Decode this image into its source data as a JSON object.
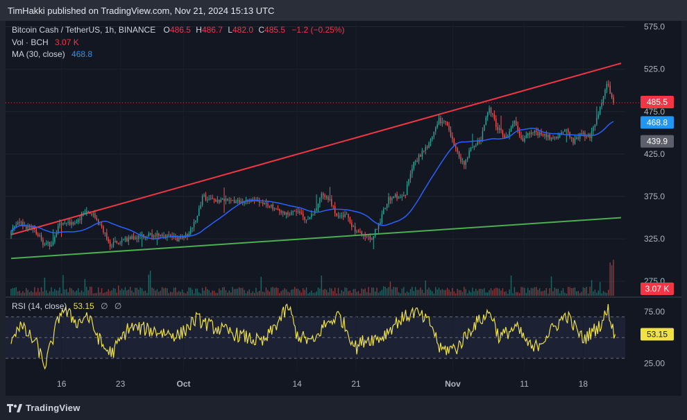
{
  "header": {
    "publisher_text": "TimHakki published on TradingView.com, Nov 21, 2024 15:13 UTC"
  },
  "legend": {
    "title": "Bitcoin Cash / TetherUS, 1h, BINANCE",
    "o_label": "O",
    "o_value": "486.5",
    "h_label": "H",
    "h_value": "486.7",
    "l_label": "L",
    "l_value": "482.0",
    "c_label": "C",
    "c_value": "485.5",
    "change": "−1.2 (−0.25%)",
    "vol_label": "Vol · BCH",
    "vol_value": "3.07 K",
    "ma_label": "MA (30, close)",
    "ma_value": "468.8"
  },
  "rsi_legend": {
    "label": "RSI (14, close)",
    "value": "53.15",
    "icons": [
      "∅",
      "∅"
    ]
  },
  "footer": {
    "logo_text": "TradingView"
  },
  "colors": {
    "up": "#26a69a",
    "down": "#ef5350",
    "ma": "#2962ff",
    "resistance": "#f23645",
    "support": "#4caf50",
    "rsi": "#f0e246",
    "current_tag": "#f23645",
    "ma_tag": "#2196f3",
    "gray_tag": "#5d606b",
    "vol_tag": "#f23645"
  },
  "chart_data": [
    {
      "type": "candlestick",
      "title": "Bitcoin Cash / TetherUS, 1h, BINANCE",
      "y_axis": {
        "ticks": [
          "575.0",
          "525.0",
          "475.0",
          "425.0",
          "375.0",
          "325.0",
          "275.0"
        ],
        "range": [
          258,
          582
        ]
      },
      "x_axis": {
        "ticks": [
          "16",
          "23",
          "Oct",
          "14",
          "21",
          "Nov",
          "11",
          "18"
        ],
        "range_days": [
          0,
          73
        ]
      },
      "price_path": {
        "day": [
          0,
          1,
          3,
          4,
          5,
          6,
          7,
          8,
          9,
          10,
          11,
          12,
          14,
          17,
          20,
          21,
          22,
          23,
          24,
          28,
          30,
          33,
          34,
          35,
          36,
          37,
          38,
          39,
          40,
          41,
          42,
          43,
          44,
          45,
          46,
          47,
          48,
          50,
          51,
          52,
          53,
          54,
          55,
          56,
          57,
          58,
          59,
          60,
          61,
          62,
          63,
          65,
          66,
          67,
          68,
          69,
          70,
          71,
          71.5,
          71.8
        ],
        "price": [
          330,
          345,
          335,
          320,
          318,
          345,
          343,
          345,
          358,
          353,
          337,
          318,
          325,
          330,
          325,
          328,
          345,
          375,
          370,
          370,
          368,
          355,
          358,
          350,
          352,
          376,
          373,
          350,
          353,
          335,
          330,
          325,
          345,
          372,
          375,
          377,
          412,
          440,
          465,
          460,
          430,
          412,
          435,
          440,
          482,
          455,
          445,
          462,
          440,
          452,
          448,
          442,
          455,
          440,
          448,
          445,
          470,
          510,
          495,
          485.5
        ]
      },
      "last_price": 485.5,
      "labels": {
        "current_price": "485.5",
        "ma_value": "468.8",
        "gray_level": "439.9"
      },
      "trendlines": [
        {
          "name": "",
          "color": "#f23645",
          "from": {
            "day": 0,
            "price": 330
          },
          "to": {
            "day": 72.5,
            "price": 532
          }
        },
        {
          "name": "",
          "color": "#4caf50",
          "from": {
            "day": 0,
            "price": 302
          },
          "to": {
            "day": 72.5,
            "price": 350
          }
        }
      ],
      "series": [
        {
          "name": "Bitcoin Cash / TetherUS",
          "kind": "candles"
        },
        {
          "name": "MA (30, close)",
          "kind": "line",
          "last_value": 468.8
        },
        {
          "name": "Vol · BCH",
          "kind": "volume",
          "last_value": "3.07 K"
        }
      ]
    },
    {
      "type": "line",
      "title": "RSI (14, close)",
      "y_axis": {
        "ticks": [
          "75.00",
          "25.00"
        ],
        "range": [
          18,
          87
        ]
      },
      "bands": {
        "upper": 70,
        "lower": 30,
        "middle": 50
      },
      "last_value": 53.15,
      "key_points": {
        "day": [
          0,
          1,
          3,
          4,
          6,
          8,
          9,
          11,
          12,
          14,
          16,
          20,
          22,
          24,
          28,
          30,
          33,
          34,
          36,
          37,
          39,
          41,
          42,
          44,
          46,
          48,
          50,
          51,
          53,
          55,
          57,
          58,
          60,
          62,
          66,
          68,
          70,
          71,
          71.6,
          71.8
        ],
        "value": [
          50,
          62,
          44,
          22,
          78,
          64,
          72,
          40,
          35,
          60,
          58,
          52,
          68,
          60,
          50,
          45,
          80,
          52,
          45,
          60,
          72,
          40,
          48,
          50,
          66,
          75,
          62,
          38,
          40,
          62,
          75,
          50,
          60,
          38,
          72,
          48,
          62,
          77,
          55,
          53.15
        ]
      }
    }
  ]
}
